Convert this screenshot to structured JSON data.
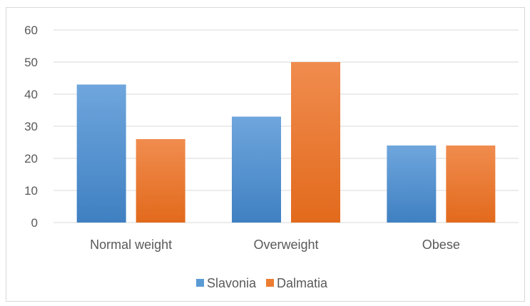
{
  "chart_data": {
    "type": "bar",
    "title": "",
    "xlabel": "",
    "ylabel": "",
    "categories": [
      "Normal weight",
      "Overweight",
      "Obese"
    ],
    "series": [
      {
        "name": "Slavonia",
        "values": [
          43,
          33,
          24
        ],
        "color": "#5b9bd5",
        "color_light": "#6fa6dd",
        "color_dark": "#3f80c2"
      },
      {
        "name": "Dalmatia",
        "values": [
          26,
          50,
          24
        ],
        "color": "#ed7d31",
        "color_light": "#f08c4f",
        "color_dark": "#e26a1c"
      }
    ],
    "ylim": [
      0,
      60
    ],
    "yticks": [
      0,
      10,
      20,
      30,
      40,
      50,
      60
    ],
    "grid": true,
    "legend_position": "bottom"
  }
}
